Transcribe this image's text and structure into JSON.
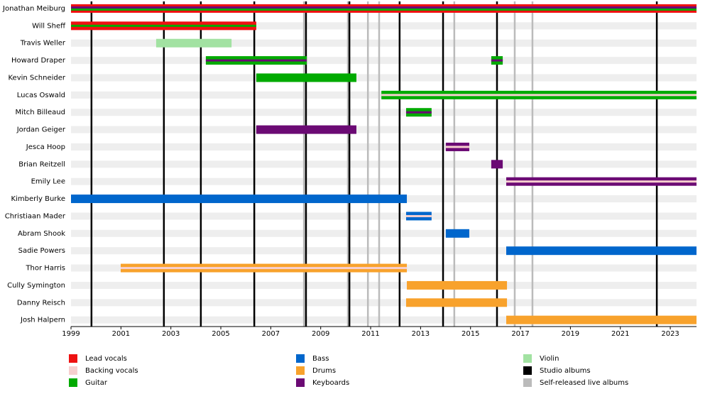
{
  "chart_data": {
    "type": "timeline",
    "xlim": [
      1999,
      2024.05
    ],
    "xticks": [
      1999,
      2001,
      2003,
      2005,
      2007,
      2009,
      2011,
      2013,
      2015,
      2017,
      2019,
      2021,
      2023
    ],
    "roles": [
      {
        "name": "Lead vocals",
        "color": "#ee1111"
      },
      {
        "name": "Backing vocals",
        "color": "#f7cfcf"
      },
      {
        "name": "Guitar",
        "color": "#00aa00"
      },
      {
        "name": "Bass",
        "color": "#0066cc"
      },
      {
        "name": "Drums",
        "color": "#f8a22c"
      },
      {
        "name": "Keyboards",
        "color": "#6b0a74"
      },
      {
        "name": "Violin",
        "color": "#a2e2a2"
      }
    ],
    "events": [
      {
        "name": "Studio albums",
        "color": "#000000",
        "dates": [
          1999.82,
          2002.72,
          2004.2,
          2006.34,
          2008.41,
          2010.15,
          2012.16,
          2013.9,
          2016.06,
          2022.46
        ]
      },
      {
        "name": "Self-released live albums",
        "color": "#bbbbbb",
        "dates": [
          2008.33,
          2010.09,
          2010.89,
          2011.34,
          2014.35,
          2016.77,
          2017.48
        ]
      }
    ],
    "members": [
      {
        "name": "Jonathan Meiburg",
        "periods": [
          {
            "start": 1999,
            "end": 2024.05,
            "roles": [
              "Lead vocals",
              "Keyboards",
              "Guitar"
            ]
          }
        ]
      },
      {
        "name": "Will Sheff",
        "periods": [
          {
            "start": 1999,
            "end": 2006.42,
            "roles": [
              "Lead vocals",
              "Guitar"
            ]
          }
        ]
      },
      {
        "name": "Travis Weller",
        "periods": [
          {
            "start": 2002.41,
            "end": 2005.43,
            "roles": [
              "Violin"
            ]
          }
        ]
      },
      {
        "name": "Howard Draper",
        "periods": [
          {
            "start": 2004.4,
            "end": 2008.44,
            "roles": [
              "Guitar",
              "Keyboards"
            ]
          },
          {
            "start": 2015.83,
            "end": 2016.29,
            "roles": [
              "Guitar",
              "Keyboards"
            ]
          }
        ]
      },
      {
        "name": "Kevin Schneider",
        "periods": [
          {
            "start": 2006.42,
            "end": 2010.43,
            "roles": [
              "Guitar"
            ]
          }
        ]
      },
      {
        "name": "Lucas Oswald",
        "periods": [
          {
            "start": 2011.43,
            "end": 2024.05,
            "roles": [
              "Guitar",
              "Backing vocals"
            ]
          }
        ]
      },
      {
        "name": "Mitch Billeaud",
        "periods": [
          {
            "start": 2012.42,
            "end": 2013.44,
            "roles": [
              "Guitar",
              "Keyboards"
            ]
          }
        ]
      },
      {
        "name": "Jordan Geiger",
        "periods": [
          {
            "start": 2006.42,
            "end": 2010.43,
            "roles": [
              "Keyboards"
            ]
          }
        ]
      },
      {
        "name": "Jesca Hoop",
        "periods": [
          {
            "start": 2014.01,
            "end": 2014.95,
            "roles": [
              "Keyboards",
              "Backing vocals"
            ]
          }
        ]
      },
      {
        "name": "Brian Reitzell",
        "periods": [
          {
            "start": 2015.83,
            "end": 2016.29,
            "roles": [
              "Keyboards"
            ]
          }
        ]
      },
      {
        "name": "Emily Lee",
        "periods": [
          {
            "start": 2016.43,
            "end": 2024.05,
            "roles": [
              "Keyboards",
              "Backing vocals"
            ]
          }
        ]
      },
      {
        "name": "Kimberly Burke",
        "periods": [
          {
            "start": 1999,
            "end": 2012.45,
            "roles": [
              "Bass"
            ]
          }
        ]
      },
      {
        "name": "Christiaan Mader",
        "periods": [
          {
            "start": 2012.42,
            "end": 2013.44,
            "roles": [
              "Bass",
              "Backing vocals"
            ]
          }
        ]
      },
      {
        "name": "Abram Shook",
        "periods": [
          {
            "start": 2014.01,
            "end": 2014.95,
            "roles": [
              "Bass"
            ]
          }
        ]
      },
      {
        "name": "Sadie Powers",
        "periods": [
          {
            "start": 2016.43,
            "end": 2024.05,
            "roles": [
              "Bass"
            ]
          }
        ]
      },
      {
        "name": "Thor Harris",
        "periods": [
          {
            "start": 2000.99,
            "end": 2012.45,
            "roles": [
              "Drums",
              "Backing vocals"
            ]
          }
        ]
      },
      {
        "name": "Cully Symington",
        "periods": [
          {
            "start": 2012.45,
            "end": 2016.46,
            "roles": [
              "Drums"
            ]
          }
        ]
      },
      {
        "name": "Danny Reisch",
        "periods": [
          {
            "start": 2012.42,
            "end": 2016.46,
            "roles": [
              "Drums"
            ]
          }
        ]
      },
      {
        "name": "Josh Halpern",
        "periods": [
          {
            "start": 2016.43,
            "end": 2024.05,
            "roles": [
              "Drums"
            ]
          }
        ]
      }
    ]
  }
}
